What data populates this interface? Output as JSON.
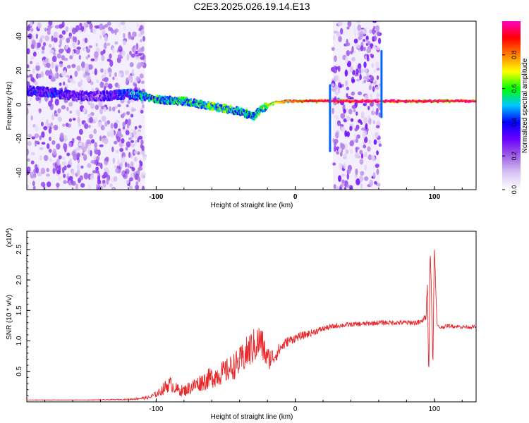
{
  "title": "C2E3.2025.026.19.14.E13",
  "chart_data": [
    {
      "type": "heatmap",
      "xlabel": "Height of straight line (km)",
      "ylabel": "Frequency (Hz)",
      "xlim": [
        -193,
        130
      ],
      "ylim": [
        -50,
        49
      ],
      "xticks": [
        -100,
        0,
        100
      ],
      "xtick_labels": [
        "-100",
        "0",
        "100"
      ],
      "yticks": [
        -40,
        -20,
        0,
        20,
        40
      ],
      "ytick_labels": [
        "-40",
        "-20",
        "0",
        "20",
        "40"
      ],
      "colorbar": {
        "label": "Normalized spectral amplitude",
        "range": [
          0.0,
          1.0
        ],
        "ticks": [
          0.0,
          0.2,
          0.4,
          0.6,
          0.8
        ],
        "tick_labels": [
          "0.0",
          "0.2",
          "0.4",
          "0.6",
          "0.8"
        ],
        "colormap": [
          "#ffffff",
          "#d8c4f2",
          "#a060e6",
          "#6a00ff",
          "#0000ff",
          "#00c8ff",
          "#00ff00",
          "#ffff00",
          "#ff8000",
          "#ff0000",
          "#ff00c0"
        ]
      },
      "noise_regions": [
        {
          "x_range": [
            -193,
            -108
          ],
          "freq_range": [
            -50,
            49
          ],
          "level": 0.25
        },
        {
          "x_range": [
            27,
            61
          ],
          "freq_range": [
            -50,
            49
          ],
          "level": 0.3
        }
      ],
      "ridge": [
        {
          "x": -190,
          "freq": 8,
          "level": 0.35
        },
        {
          "x": -175,
          "freq": 7,
          "level": 0.4
        },
        {
          "x": -160,
          "freq": 5,
          "level": 0.3
        },
        {
          "x": -140,
          "freq": 5,
          "level": 0.3
        },
        {
          "x": -120,
          "freq": 6,
          "level": 0.45
        },
        {
          "x": -110,
          "freq": 5,
          "level": 0.5
        },
        {
          "x": -100,
          "freq": 3,
          "level": 0.55
        },
        {
          "x": -80,
          "freq": 2,
          "level": 0.55
        },
        {
          "x": -60,
          "freq": -1,
          "level": 0.6
        },
        {
          "x": -40,
          "freq": -4,
          "level": 0.55
        },
        {
          "x": -30,
          "freq": -7,
          "level": 0.5
        },
        {
          "x": -25,
          "freq": -3,
          "level": 0.6
        },
        {
          "x": -15,
          "freq": 1,
          "level": 0.7
        },
        {
          "x": -5,
          "freq": 2,
          "level": 0.8
        },
        {
          "x": 10,
          "freq": 2,
          "level": 0.9
        },
        {
          "x": 25,
          "freq": 2,
          "level": 0.95
        },
        {
          "x": 65,
          "freq": 2,
          "level": 0.95
        },
        {
          "x": 90,
          "freq": 2,
          "level": 0.95
        },
        {
          "x": 130,
          "freq": 2,
          "level": 0.95
        }
      ],
      "spikes": [
        {
          "x": 25,
          "freq_min": -28,
          "freq_max": 12
        },
        {
          "x": 62,
          "freq_min": -8,
          "freq_max": 32
        }
      ]
    },
    {
      "type": "line",
      "xlabel": "Height of straight line (km)",
      "ylabel": "SNR (10 * v/v)",
      "exponent_label": "(x10",
      "exponent_power": "4",
      "exponent_close": ")",
      "xlim": [
        -193,
        130
      ],
      "ylim": [
        0,
        2.8
      ],
      "xticks": [
        -100,
        0,
        100
      ],
      "xtick_labels": [
        "-100",
        "0",
        "100"
      ],
      "yticks": [
        0.5,
        1.0,
        1.5,
        2.0,
        2.5
      ],
      "ytick_labels": [
        "0.5",
        "1.0",
        "1.5",
        "2.0",
        "2.5"
      ],
      "color": "#e8282a",
      "series": [
        {
          "x": [
            -193,
            -150,
            -120,
            -105,
            -98,
            -93,
            -90,
            -85,
            -80,
            -70,
            -60,
            -50,
            -40,
            -33,
            -25,
            -20,
            -15,
            -10,
            -5,
            0,
            10,
            20,
            30,
            40,
            50,
            60,
            70,
            80,
            90,
            94,
            95,
            96,
            97,
            98,
            99,
            100,
            101,
            102,
            104,
            110,
            120,
            130
          ],
          "y": [
            0.03,
            0.03,
            0.04,
            0.07,
            0.15,
            0.25,
            0.3,
            0.2,
            0.18,
            0.3,
            0.4,
            0.5,
            0.65,
            0.85,
            1.0,
            0.7,
            0.75,
            0.9,
            1.0,
            1.05,
            1.12,
            1.2,
            1.25,
            1.27,
            1.28,
            1.3,
            1.3,
            1.3,
            1.3,
            1.4,
            2.0,
            0.3,
            2.6,
            1.6,
            0.6,
            2.7,
            1.8,
            1.25,
            1.22,
            1.25,
            1.23,
            1.23
          ],
          "noise": [
            0.005,
            0.005,
            0.01,
            0.03,
            0.06,
            0.12,
            0.12,
            0.1,
            0.1,
            0.14,
            0.18,
            0.2,
            0.24,
            0.3,
            0.3,
            0.2,
            0.14,
            0.1,
            0.08,
            0.07,
            0.06,
            0.05,
            0.04,
            0.04,
            0.04,
            0.04,
            0.04,
            0.04,
            0.05,
            0.05,
            0.1,
            0.1,
            0.1,
            0.1,
            0.1,
            0.1,
            0.05,
            0.03,
            0.03,
            0.03,
            0.03,
            0.03
          ]
        }
      ]
    }
  ]
}
